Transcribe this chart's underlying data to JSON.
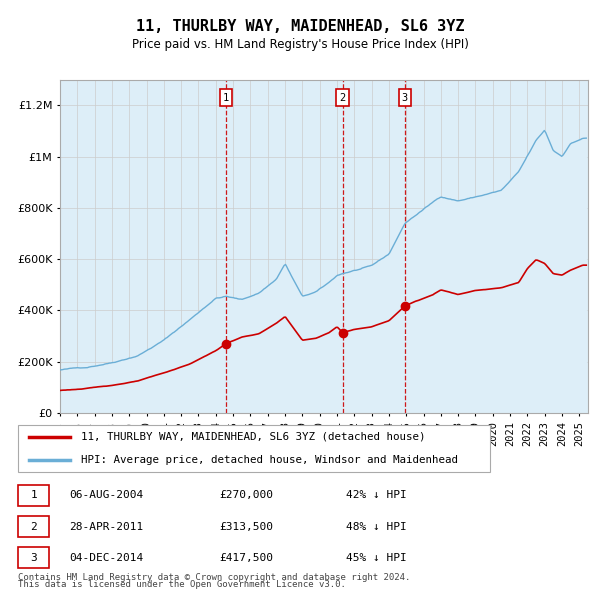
{
  "title": "11, THURLBY WAY, MAIDENHEAD, SL6 3YZ",
  "subtitle": "Price paid vs. HM Land Registry's House Price Index (HPI)",
  "footer1": "Contains HM Land Registry data © Crown copyright and database right 2024.",
  "footer2": "This data is licensed under the Open Government Licence v3.0.",
  "legend1": "11, THURLBY WAY, MAIDENHEAD, SL6 3YZ (detached house)",
  "legend2": "HPI: Average price, detached house, Windsor and Maidenhead",
  "transactions": [
    {
      "label": "1",
      "date": "06-AUG-2004",
      "price": 270000,
      "price_str": "£270,000",
      "note": "42% ↓ HPI"
    },
    {
      "label": "2",
      "date": "28-APR-2011",
      "price": 313500,
      "price_str": "£313,500",
      "note": "48% ↓ HPI"
    },
    {
      "label": "3",
      "date": "04-DEC-2014",
      "price": 417500,
      "price_str": "£417,500",
      "note": "45% ↓ HPI"
    }
  ],
  "transaction_dates_decimal": [
    2004.597,
    2011.324,
    2014.922
  ],
  "hpi_color": "#6aaed6",
  "hpi_fill_color": "#ddeef8",
  "price_color": "#cc0000",
  "marker_color": "#cc0000",
  "vline_color": "#cc0000",
  "grid_color": "#cccccc",
  "bg_color": "#ffffff",
  "ylim": [
    0,
    1300000
  ],
  "xlim_start": 1995.0,
  "xlim_end": 2025.5
}
